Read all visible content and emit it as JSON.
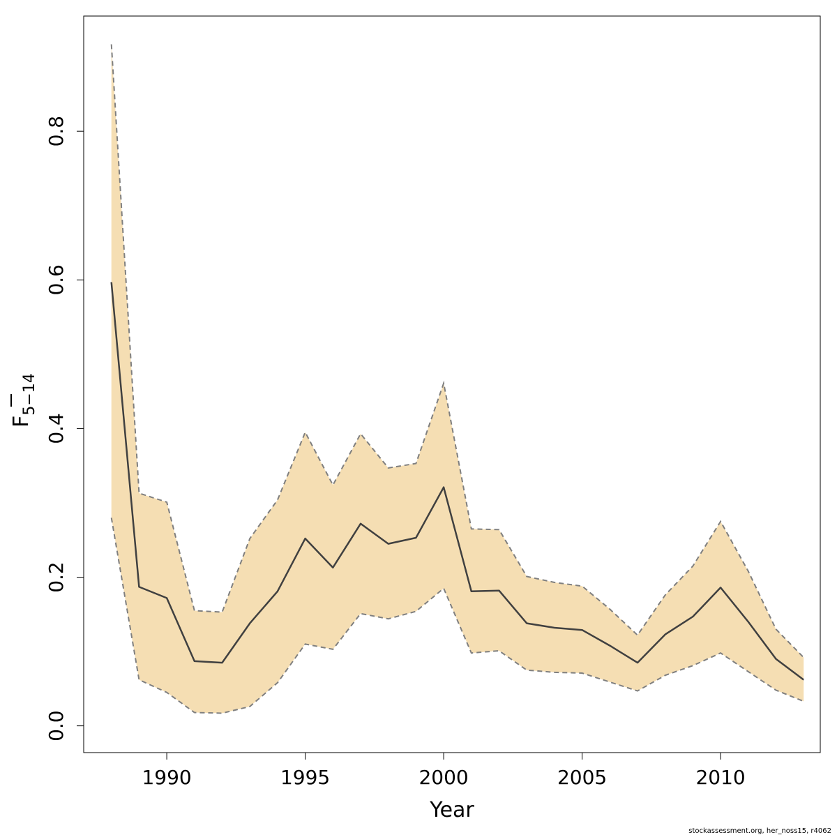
{
  "chart_data": {
    "type": "area",
    "title": "",
    "xlabel": "Year",
    "ylabel_main": "F",
    "ylabel_sub": "5−14",
    "xlim": [
      1987.0,
      2013.6
    ],
    "ylim": [
      -0.036,
      0.955
    ],
    "x_ticks": [
      1990,
      1995,
      2000,
      2005,
      2010
    ],
    "y_ticks": [
      0.0,
      0.2,
      0.4,
      0.6,
      0.8
    ],
    "x_tick_labels": [
      "1990",
      "1995",
      "2000",
      "2005",
      "2010"
    ],
    "y_tick_labels": [
      "0.0",
      "0.2",
      "0.4",
      "0.6",
      "0.8"
    ],
    "grid": false,
    "band_color": "#f5deb3",
    "band_edge_color": "#7f7f7f",
    "line_color": "#404040",
    "years": [
      1988,
      1989,
      1990,
      1991,
      1992,
      1993,
      1994,
      1995,
      1996,
      1997,
      1998,
      1999,
      2000,
      2001,
      2002,
      2003,
      2004,
      2005,
      2006,
      2007,
      2008,
      2009,
      2010,
      2011,
      2012,
      2013
    ],
    "series": [
      {
        "role": "estimate",
        "values": [
          0.597,
          0.187,
          0.172,
          0.087,
          0.085,
          0.138,
          0.181,
          0.252,
          0.213,
          0.272,
          0.245,
          0.253,
          0.321,
          0.181,
          0.182,
          0.138,
          0.132,
          0.129,
          0.108,
          0.085,
          0.123,
          0.147,
          0.186,
          0.14,
          0.09,
          0.062
        ]
      },
      {
        "role": "upper",
        "values": [
          0.917,
          0.313,
          0.301,
          0.155,
          0.153,
          0.252,
          0.304,
          0.395,
          0.324,
          0.393,
          0.347,
          0.353,
          0.461,
          0.265,
          0.264,
          0.201,
          0.193,
          0.188,
          0.157,
          0.122,
          0.176,
          0.215,
          0.275,
          0.208,
          0.13,
          0.092
        ]
      },
      {
        "role": "lower",
        "values": [
          0.28,
          0.062,
          0.045,
          0.018,
          0.017,
          0.026,
          0.058,
          0.11,
          0.103,
          0.151,
          0.144,
          0.154,
          0.185,
          0.098,
          0.101,
          0.075,
          0.072,
          0.071,
          0.059,
          0.047,
          0.068,
          0.081,
          0.098,
          0.073,
          0.048,
          0.033
        ]
      }
    ]
  },
  "footer": "stockassessment.org, her_noss15, r4062"
}
